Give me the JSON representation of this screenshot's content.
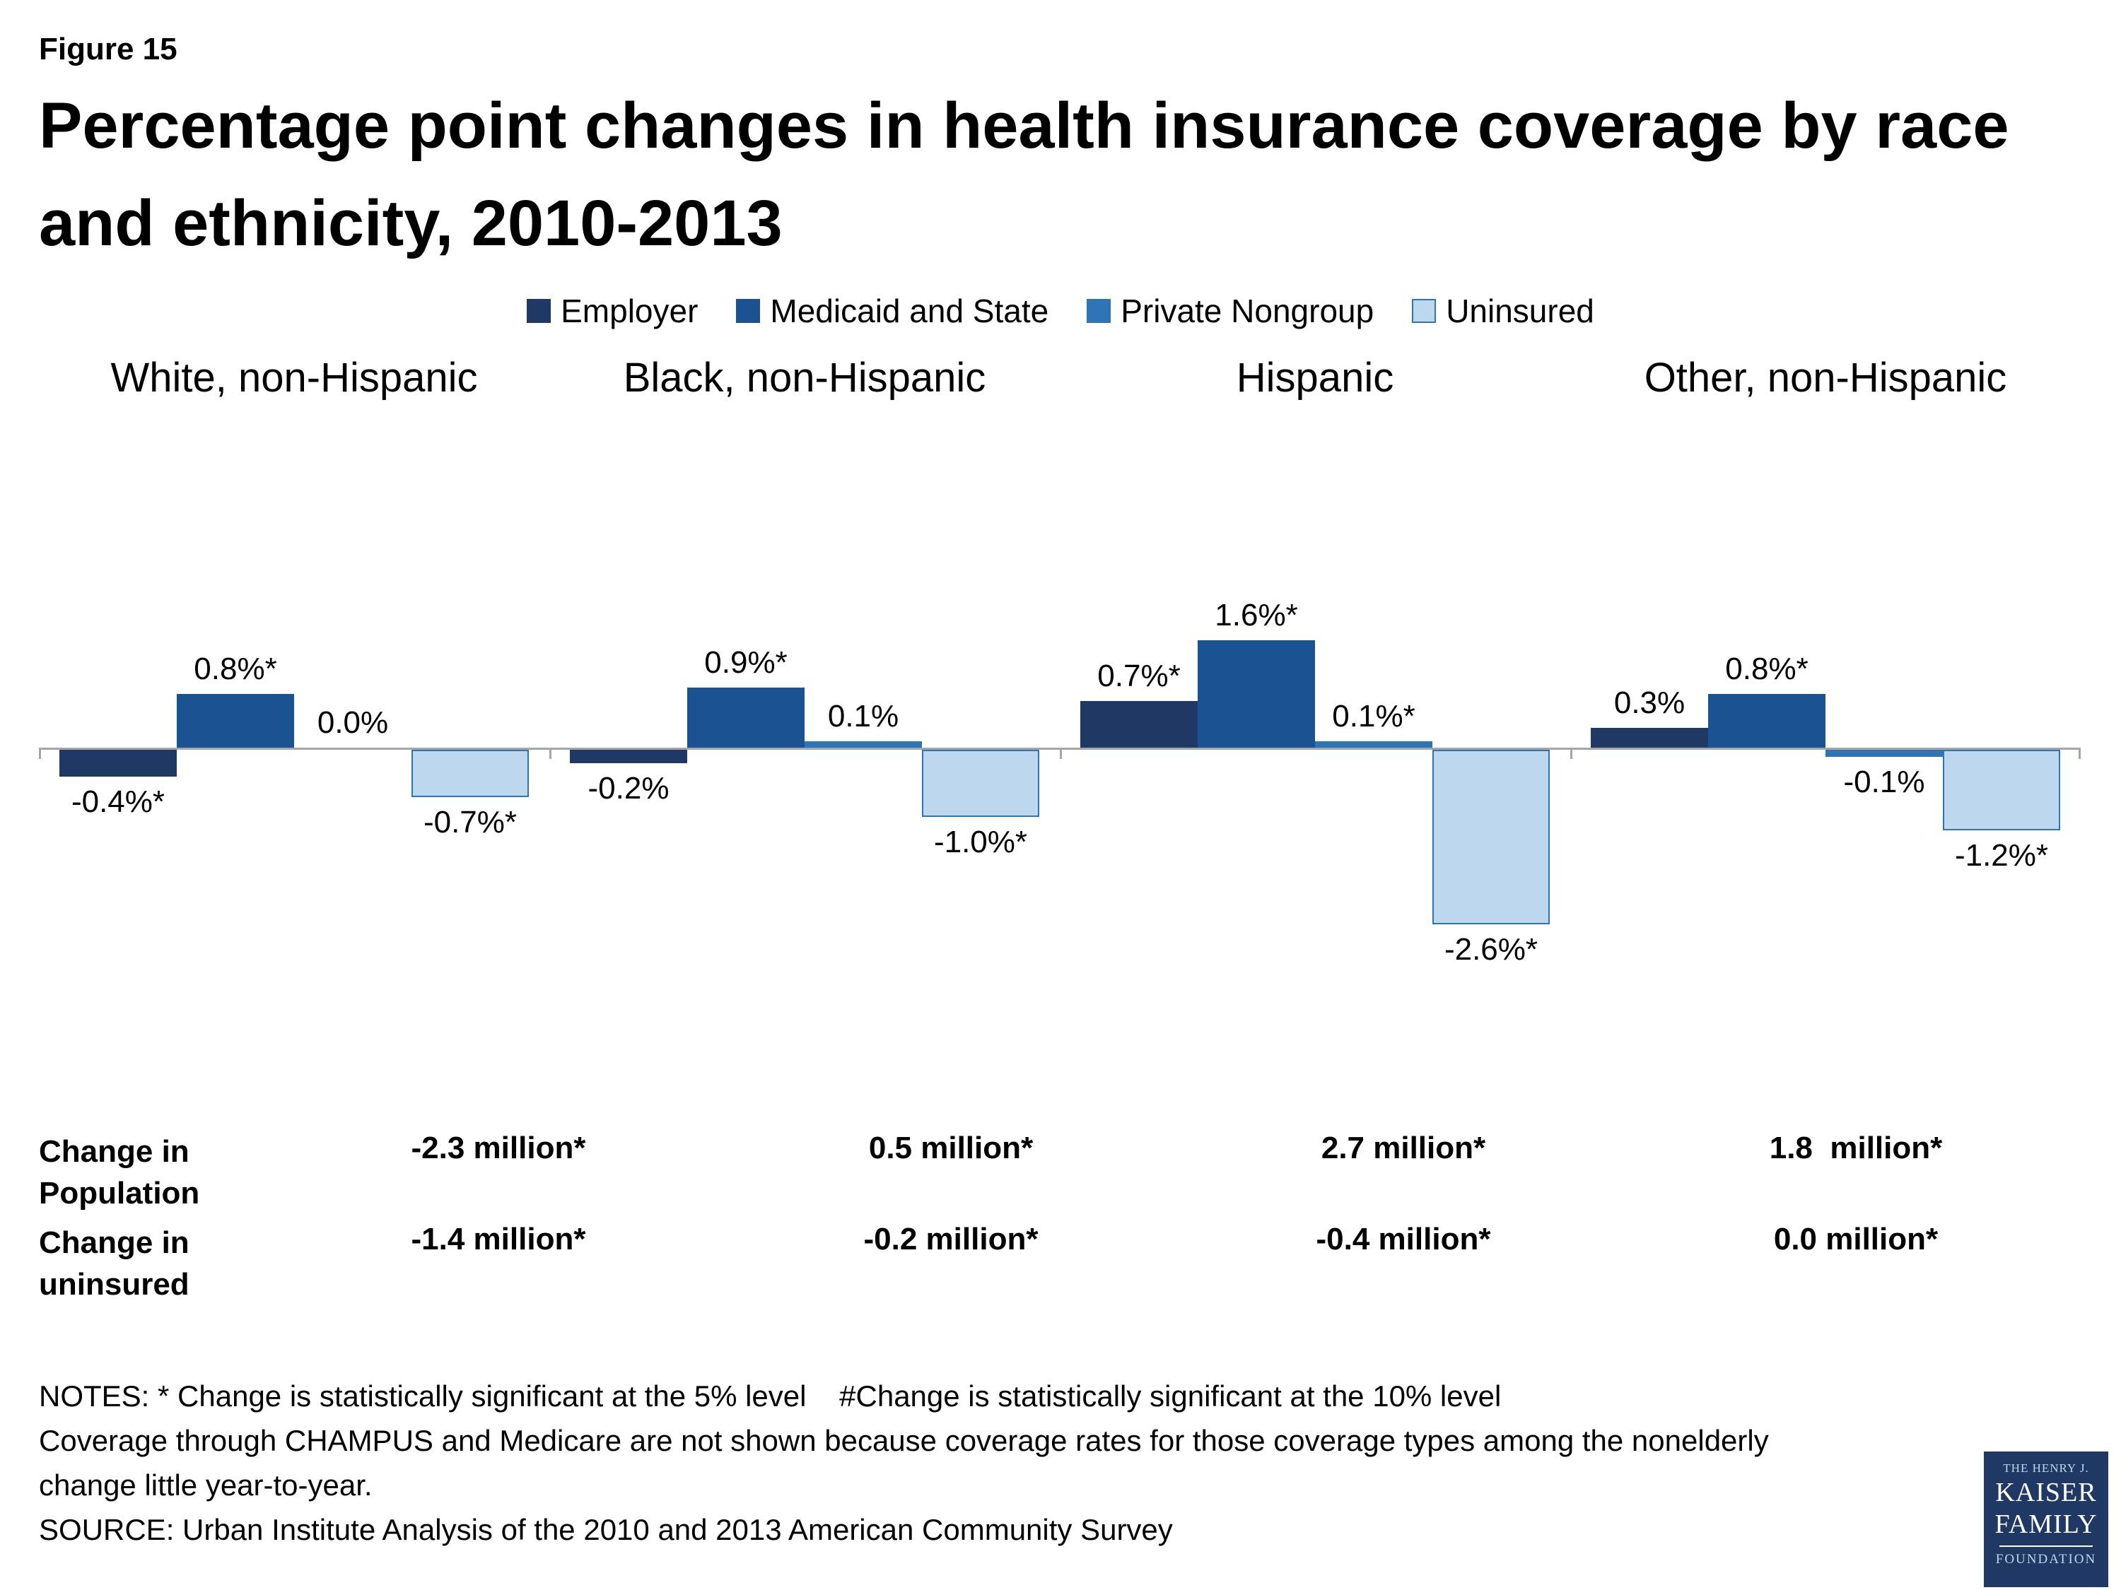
{
  "figure_label": "Figure 15",
  "title": "Percentage point changes in health insurance coverage by race and ethnicity, 2010-2013",
  "legend": [
    {
      "label": "Employer",
      "color": "#1f3864"
    },
    {
      "label": "Medicaid and State",
      "color": "#1b5291"
    },
    {
      "label": "Private Nongroup",
      "color": "#2e75b6"
    },
    {
      "label": "Uninsured",
      "color": "#bdd7ee",
      "border": "#2e75b6"
    }
  ],
  "chart_data": {
    "type": "bar",
    "categories": [
      "White, non-Hispanic",
      "Black, non-Hispanic",
      "Hispanic",
      "Other, non-Hispanic"
    ],
    "series": [
      {
        "name": "Employer",
        "color": "#1f3864",
        "values": [
          -0.4,
          -0.2,
          0.7,
          0.3
        ],
        "labels": [
          "-0.4%*",
          "-0.2%",
          "0.7%*",
          "0.3%"
        ]
      },
      {
        "name": "Medicaid and State",
        "color": "#1b5291",
        "values": [
          0.8,
          0.9,
          1.6,
          0.8
        ],
        "labels": [
          "0.8%*",
          "0.9%*",
          "1.6%*",
          "0.8%*"
        ]
      },
      {
        "name": "Private Nongroup",
        "color": "#2e75b6",
        "values": [
          0.0,
          0.1,
          0.1,
          -0.1
        ],
        "labels": [
          "0.0%",
          "0.1%",
          "0.1%*",
          "-0.1%"
        ]
      },
      {
        "name": "Uninsured",
        "color": "#bdd7ee",
        "border": "#2e75b6",
        "values": [
          -0.7,
          -1.0,
          -2.6,
          -1.2
        ],
        "labels": [
          "-0.7%*",
          "-1.0%*",
          "-2.6%*",
          "-1.2%*"
        ]
      }
    ],
    "ylim": [
      -3.2,
      2.2
    ],
    "unit": "percentage points",
    "grid": false,
    "legend_position": "top"
  },
  "table": {
    "rows": [
      {
        "label": "Change in Population",
        "values": [
          "-2.3 million*",
          "0.5 million*",
          "2.7 million*",
          "1.8  million*"
        ]
      },
      {
        "label": "Change in uninsured",
        "values": [
          "-1.4 million*",
          "-0.2 million*",
          "-0.4 million*",
          "0.0 million*"
        ]
      }
    ]
  },
  "notes": {
    "line1": "NOTES: * Change is statistically significant at the 5% level    #Change is statistically significant at the 10% level",
    "line2": "Coverage through CHAMPUS and Medicare are not shown because coverage rates for those coverage types among the nonelderly change little year-to-year.",
    "line3": "SOURCE: Urban Institute Analysis of the 2010 and 2013 American Community Survey"
  },
  "logo": {
    "line1": "THE HENRY J.",
    "line2": "KAISER",
    "line3": "FAMILY",
    "line4": "FOUNDATION"
  }
}
